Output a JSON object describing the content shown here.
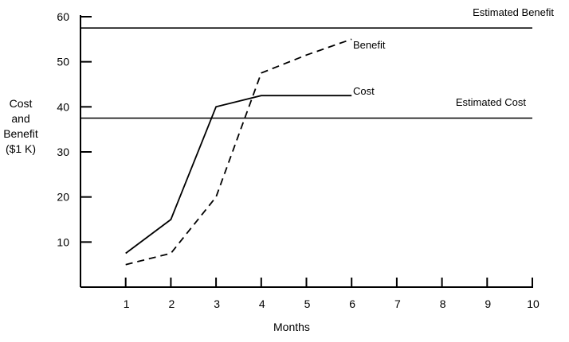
{
  "chart_data": {
    "type": "line",
    "xlabel": "Months",
    "ylabel_lines": [
      "Cost",
      "and",
      "Benefit",
      "($1 K)"
    ],
    "xlim": [
      0,
      10
    ],
    "ylim": [
      0,
      60
    ],
    "x_ticks": [
      1,
      2,
      3,
      4,
      5,
      6,
      7,
      8,
      9,
      10
    ],
    "y_ticks": [
      10,
      20,
      30,
      40,
      50,
      60
    ],
    "grid": false,
    "series": [
      {
        "name": "Cost",
        "style": "solid",
        "x": [
          1,
          2,
          3,
          4,
          6
        ],
        "values": [
          7.5,
          15,
          40,
          42.5,
          42.5
        ]
      },
      {
        "name": "Benefit",
        "style": "dashed",
        "x": [
          1,
          2,
          3,
          4,
          5,
          6
        ],
        "values": [
          5,
          7.5,
          20,
          47.5,
          51.5,
          55
        ]
      }
    ],
    "reference_lines": [
      {
        "name": "Estimated Benefit",
        "value": 57.5
      },
      {
        "name": "Estimated Cost",
        "value": 37.5
      }
    ],
    "line_color": "#000000"
  }
}
